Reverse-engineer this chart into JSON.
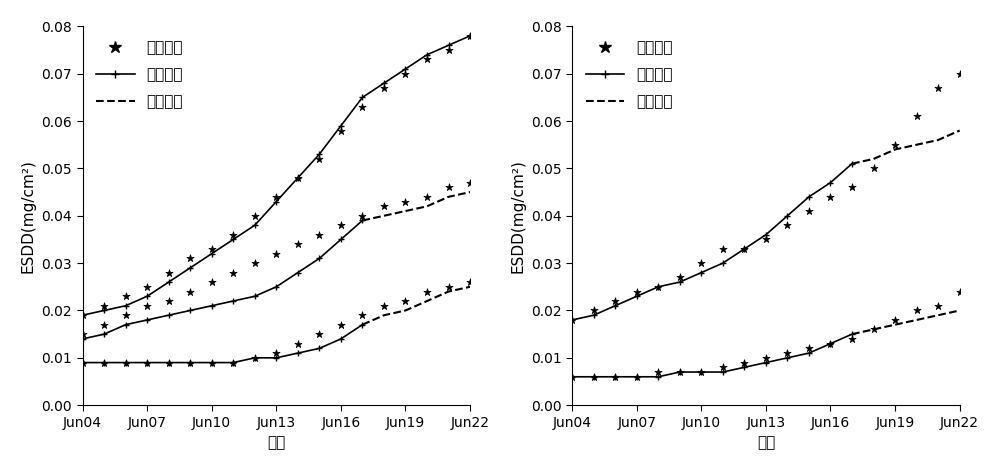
{
  "xlabel": "时间",
  "ylabel": "ESDD(mg/cm²)",
  "ylim": [
    0,
    0.08
  ],
  "yticks": [
    0,
    0.01,
    0.02,
    0.03,
    0.04,
    0.05,
    0.06,
    0.07,
    0.08
  ],
  "xtick_labels": [
    "Jun04",
    "Jun07",
    "Jun10",
    "Jun13",
    "Jun16",
    "Jun19",
    "Jun22"
  ],
  "legend_measured": "实测数据",
  "legend_fit": "拟合结果",
  "legend_pred": "预测结果",
  "left_fit_top_x": [
    0,
    1,
    2,
    3,
    4,
    5,
    6,
    7,
    8,
    9,
    10,
    11,
    12,
    13,
    14,
    15,
    16,
    17,
    18
  ],
  "left_fit_top_y": [
    0.019,
    0.02,
    0.021,
    0.023,
    0.026,
    0.029,
    0.032,
    0.035,
    0.038,
    0.043,
    0.048,
    0.053,
    0.059,
    0.065,
    0.068,
    0.071,
    0.074,
    0.076,
    0.078
  ],
  "left_meas_top_x": [
    0,
    1,
    2,
    3,
    4,
    5,
    6,
    7,
    8,
    9,
    10,
    11,
    12,
    13,
    14,
    15,
    16,
    17,
    18
  ],
  "left_meas_top_y": [
    0.019,
    0.021,
    0.023,
    0.025,
    0.028,
    0.031,
    0.033,
    0.036,
    0.04,
    0.044,
    0.048,
    0.052,
    0.058,
    0.063,
    0.067,
    0.07,
    0.073,
    0.075,
    0.078
  ],
  "left_fit_mid_x": [
    0,
    1,
    2,
    3,
    4,
    5,
    6,
    7,
    8,
    9,
    10,
    11,
    12,
    13
  ],
  "left_fit_mid_y": [
    0.014,
    0.015,
    0.017,
    0.018,
    0.019,
    0.02,
    0.021,
    0.022,
    0.023,
    0.025,
    0.028,
    0.031,
    0.035,
    0.039
  ],
  "left_meas_mid_x": [
    0,
    1,
    2,
    3,
    4,
    5,
    6,
    7,
    8,
    9,
    10,
    11,
    12,
    13,
    14,
    15,
    16,
    17,
    18
  ],
  "left_meas_mid_y": [
    0.015,
    0.017,
    0.019,
    0.021,
    0.022,
    0.024,
    0.026,
    0.028,
    0.03,
    0.032,
    0.034,
    0.036,
    0.038,
    0.04,
    0.042,
    0.043,
    0.044,
    0.046,
    0.047
  ],
  "left_pred_mid_x": [
    13,
    14,
    15,
    16,
    17,
    18
  ],
  "left_pred_mid_y": [
    0.039,
    0.04,
    0.041,
    0.042,
    0.044,
    0.045
  ],
  "left_fit_bot_x": [
    0,
    1,
    2,
    3,
    4,
    5,
    6,
    7,
    8,
    9,
    10,
    11,
    12,
    13
  ],
  "left_fit_bot_y": [
    0.009,
    0.009,
    0.009,
    0.009,
    0.009,
    0.009,
    0.009,
    0.009,
    0.01,
    0.01,
    0.011,
    0.012,
    0.014,
    0.017
  ],
  "left_meas_bot_x": [
    0,
    1,
    2,
    3,
    4,
    5,
    6,
    7,
    8,
    9,
    10,
    11,
    12,
    13,
    14,
    15,
    16,
    17,
    18
  ],
  "left_meas_bot_y": [
    0.009,
    0.009,
    0.009,
    0.009,
    0.009,
    0.009,
    0.009,
    0.009,
    0.01,
    0.011,
    0.013,
    0.015,
    0.017,
    0.019,
    0.021,
    0.022,
    0.024,
    0.025,
    0.026
  ],
  "left_pred_bot_x": [
    13,
    14,
    15,
    16,
    17,
    18
  ],
  "left_pred_bot_y": [
    0.017,
    0.019,
    0.02,
    0.022,
    0.024,
    0.025
  ],
  "right_fit_top_x": [
    0,
    1,
    2,
    3,
    4,
    5,
    6,
    7,
    8,
    9,
    10,
    11,
    12,
    13
  ],
  "right_fit_top_y": [
    0.018,
    0.019,
    0.021,
    0.023,
    0.025,
    0.026,
    0.028,
    0.03,
    0.033,
    0.036,
    0.04,
    0.044,
    0.047,
    0.051
  ],
  "right_meas_top_x": [
    0,
    1,
    2,
    3,
    4,
    5,
    6,
    7,
    8,
    9,
    10,
    11,
    12,
    13,
    14,
    15,
    16,
    17,
    18
  ],
  "right_meas_top_y": [
    0.018,
    0.02,
    0.022,
    0.024,
    0.025,
    0.027,
    0.03,
    0.033,
    0.033,
    0.035,
    0.038,
    0.041,
    0.044,
    0.046,
    0.05,
    0.055,
    0.061,
    0.067,
    0.07
  ],
  "right_pred_top_x": [
    13,
    14,
    15,
    16,
    17,
    18
  ],
  "right_pred_top_y": [
    0.051,
    0.052,
    0.054,
    0.055,
    0.056,
    0.058
  ],
  "right_fit_bot_x": [
    0,
    1,
    2,
    3,
    4,
    5,
    6,
    7,
    8,
    9,
    10,
    11,
    12,
    13
  ],
  "right_fit_bot_y": [
    0.006,
    0.006,
    0.006,
    0.006,
    0.006,
    0.007,
    0.007,
    0.007,
    0.008,
    0.009,
    0.01,
    0.011,
    0.013,
    0.015
  ],
  "right_meas_bot_x": [
    0,
    1,
    2,
    3,
    4,
    5,
    6,
    7,
    8,
    9,
    10,
    11,
    12,
    13,
    14,
    15,
    16,
    17,
    18
  ],
  "right_meas_bot_y": [
    0.006,
    0.006,
    0.006,
    0.006,
    0.007,
    0.007,
    0.007,
    0.008,
    0.009,
    0.01,
    0.011,
    0.012,
    0.013,
    0.014,
    0.016,
    0.018,
    0.02,
    0.021,
    0.024
  ],
  "right_pred_bot_x": [
    13,
    14,
    15,
    16,
    17,
    18
  ],
  "right_pred_bot_y": [
    0.015,
    0.016,
    0.017,
    0.018,
    0.019,
    0.02
  ],
  "line_color": "#000000",
  "bg_color": "#ffffff",
  "fontsize_label": 11,
  "fontsize_tick": 10,
  "fontsize_legend": 11
}
